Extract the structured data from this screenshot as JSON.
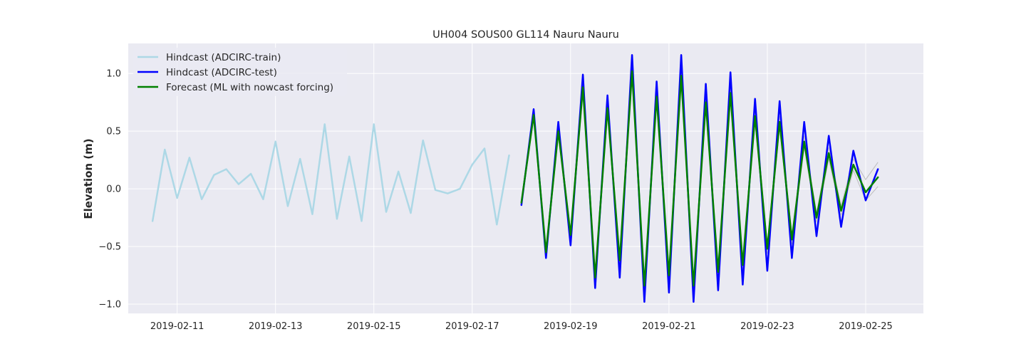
{
  "chart_data": {
    "type": "line",
    "title": "UH004 SOUS00 GL114 Nauru Nauru",
    "xlabel": "",
    "ylabel": "Elevation (m)",
    "x_type": "date",
    "xlim": [
      "2019-02-10T00:09",
      "2019-02-26T04:10"
    ],
    "ylim": [
      -1.08,
      1.26
    ],
    "x_ticks": [
      "2019-02-11",
      "2019-02-13",
      "2019-02-15",
      "2019-02-17",
      "2019-02-19",
      "2019-02-21",
      "2019-02-23",
      "2019-02-25"
    ],
    "y_ticks": [
      -1.0,
      -0.5,
      0.0,
      0.5,
      1.0
    ],
    "y_tick_labels": [
      "−1.0",
      "−0.5",
      "0.0",
      "0.5",
      "1.0"
    ],
    "grid": true,
    "legend_position": "top-left",
    "colors": {
      "background": "#eaeaf2",
      "grid": "#ffffff",
      "band": "#b0b0b0"
    },
    "series": [
      {
        "name": "Hindcast (ADCIRC-train)",
        "color": "#add8e6",
        "linewidth": 2.5,
        "x": [
          "2019-02-10T12:00",
          "2019-02-10T18:00",
          "2019-02-11T00:00",
          "2019-02-11T06:00",
          "2019-02-11T12:00",
          "2019-02-11T18:00",
          "2019-02-12T00:00",
          "2019-02-12T06:00",
          "2019-02-12T12:00",
          "2019-02-12T18:00",
          "2019-02-13T00:00",
          "2019-02-13T06:00",
          "2019-02-13T12:00",
          "2019-02-13T18:00",
          "2019-02-14T00:00",
          "2019-02-14T06:00",
          "2019-02-14T12:00",
          "2019-02-14T18:00",
          "2019-02-15T00:00",
          "2019-02-15T06:00",
          "2019-02-15T12:00",
          "2019-02-15T18:00",
          "2019-02-16T00:00",
          "2019-02-16T06:00",
          "2019-02-16T12:00",
          "2019-02-16T18:00",
          "2019-02-17T00:00",
          "2019-02-17T06:00",
          "2019-02-17T12:00",
          "2019-02-17T18:00"
        ],
        "y": [
          -0.28,
          0.34,
          -0.08,
          0.27,
          -0.09,
          0.12,
          0.17,
          0.04,
          0.13,
          -0.09,
          0.41,
          -0.15,
          0.26,
          -0.22,
          0.56,
          -0.26,
          0.28,
          -0.28,
          0.56,
          -0.2,
          0.15,
          -0.21,
          0.42,
          -0.01,
          -0.04,
          0.0,
          0.21,
          0.35,
          -0.31,
          0.29
        ]
      },
      {
        "name": "Hindcast (ADCIRC-test)",
        "color": "#0000ff",
        "linewidth": 2.5,
        "x": [
          "2019-02-18T00:00",
          "2019-02-18T06:00",
          "2019-02-18T12:00",
          "2019-02-18T18:00",
          "2019-02-19T00:00",
          "2019-02-19T06:00",
          "2019-02-19T12:00",
          "2019-02-19T18:00",
          "2019-02-20T00:00",
          "2019-02-20T06:00",
          "2019-02-20T12:00",
          "2019-02-20T18:00",
          "2019-02-21T00:00",
          "2019-02-21T06:00",
          "2019-02-21T12:00",
          "2019-02-21T18:00",
          "2019-02-22T00:00",
          "2019-02-22T06:00",
          "2019-02-22T12:00",
          "2019-02-22T18:00",
          "2019-02-23T00:00",
          "2019-02-23T06:00",
          "2019-02-23T12:00",
          "2019-02-23T18:00",
          "2019-02-24T00:00",
          "2019-02-24T06:00",
          "2019-02-24T12:00",
          "2019-02-24T18:00",
          "2019-02-25T00:00",
          "2019-02-25T06:00"
        ],
        "y": [
          -0.14,
          0.69,
          -0.6,
          0.58,
          -0.49,
          0.99,
          -0.86,
          0.81,
          -0.77,
          1.16,
          -0.98,
          0.93,
          -0.9,
          1.16,
          -0.98,
          0.91,
          -0.88,
          1.01,
          -0.83,
          0.78,
          -0.71,
          0.76,
          -0.6,
          0.58,
          -0.41,
          0.46,
          -0.33,
          0.33,
          -0.1,
          0.17
        ]
      },
      {
        "name": "Forecast (ML with nowcast forcing)",
        "color": "#008000",
        "linewidth": 2.5,
        "x": [
          "2019-02-18T00:00",
          "2019-02-18T06:00",
          "2019-02-18T12:00",
          "2019-02-18T18:00",
          "2019-02-19T00:00",
          "2019-02-19T06:00",
          "2019-02-19T12:00",
          "2019-02-19T18:00",
          "2019-02-20T00:00",
          "2019-02-20T06:00",
          "2019-02-20T12:00",
          "2019-02-20T18:00",
          "2019-02-21T00:00",
          "2019-02-21T06:00",
          "2019-02-21T12:00",
          "2019-02-21T18:00",
          "2019-02-22T00:00",
          "2019-02-22T06:00",
          "2019-02-22T12:00",
          "2019-02-22T18:00",
          "2019-02-23T00:00",
          "2019-02-23T06:00",
          "2019-02-23T12:00",
          "2019-02-23T18:00",
          "2019-02-24T00:00",
          "2019-02-24T06:00",
          "2019-02-24T12:00",
          "2019-02-24T18:00",
          "2019-02-25T00:00",
          "2019-02-25T06:00"
        ],
        "y": [
          -0.12,
          0.64,
          -0.55,
          0.5,
          -0.4,
          0.88,
          -0.77,
          0.7,
          -0.62,
          1.02,
          -0.84,
          0.8,
          -0.75,
          0.98,
          -0.84,
          0.75,
          -0.72,
          0.83,
          -0.66,
          0.63,
          -0.52,
          0.58,
          -0.44,
          0.41,
          -0.25,
          0.31,
          -0.19,
          0.21,
          -0.03,
          0.1
        ]
      }
    ],
    "band": {
      "x": [
        "2019-02-18T00:00",
        "2019-02-18T06:00",
        "2019-02-18T12:00",
        "2019-02-18T18:00",
        "2019-02-19T00:00",
        "2019-02-19T06:00",
        "2019-02-19T12:00",
        "2019-02-19T18:00",
        "2019-02-20T00:00",
        "2019-02-20T06:00",
        "2019-02-20T12:00",
        "2019-02-20T18:00",
        "2019-02-21T00:00",
        "2019-02-21T06:00",
        "2019-02-21T12:00",
        "2019-02-21T18:00",
        "2019-02-22T00:00",
        "2019-02-22T06:00",
        "2019-02-22T12:00",
        "2019-02-22T18:00",
        "2019-02-23T00:00",
        "2019-02-23T06:00",
        "2019-02-23T12:00",
        "2019-02-23T18:00",
        "2019-02-24T00:00",
        "2019-02-24T06:00",
        "2019-02-24T12:00",
        "2019-02-24T18:00",
        "2019-02-25T00:00",
        "2019-02-25T06:00"
      ],
      "upper": [
        -0.1,
        0.67,
        -0.52,
        0.54,
        -0.36,
        0.93,
        -0.73,
        0.75,
        -0.58,
        1.07,
        -0.8,
        0.85,
        -0.71,
        1.03,
        -0.8,
        0.8,
        -0.68,
        0.88,
        -0.62,
        0.68,
        -0.48,
        0.63,
        -0.4,
        0.46,
        -0.21,
        0.36,
        -0.15,
        0.26,
        0.08,
        0.23
      ],
      "lower": [
        -0.15,
        0.61,
        -0.59,
        0.46,
        -0.45,
        0.83,
        -0.81,
        0.65,
        -0.66,
        0.97,
        -0.88,
        0.75,
        -0.79,
        0.93,
        -0.88,
        0.7,
        -0.76,
        0.78,
        -0.7,
        0.58,
        -0.56,
        0.53,
        -0.48,
        0.36,
        -0.29,
        0.26,
        -0.23,
        0.16,
        -0.1,
        0.02
      ]
    }
  }
}
